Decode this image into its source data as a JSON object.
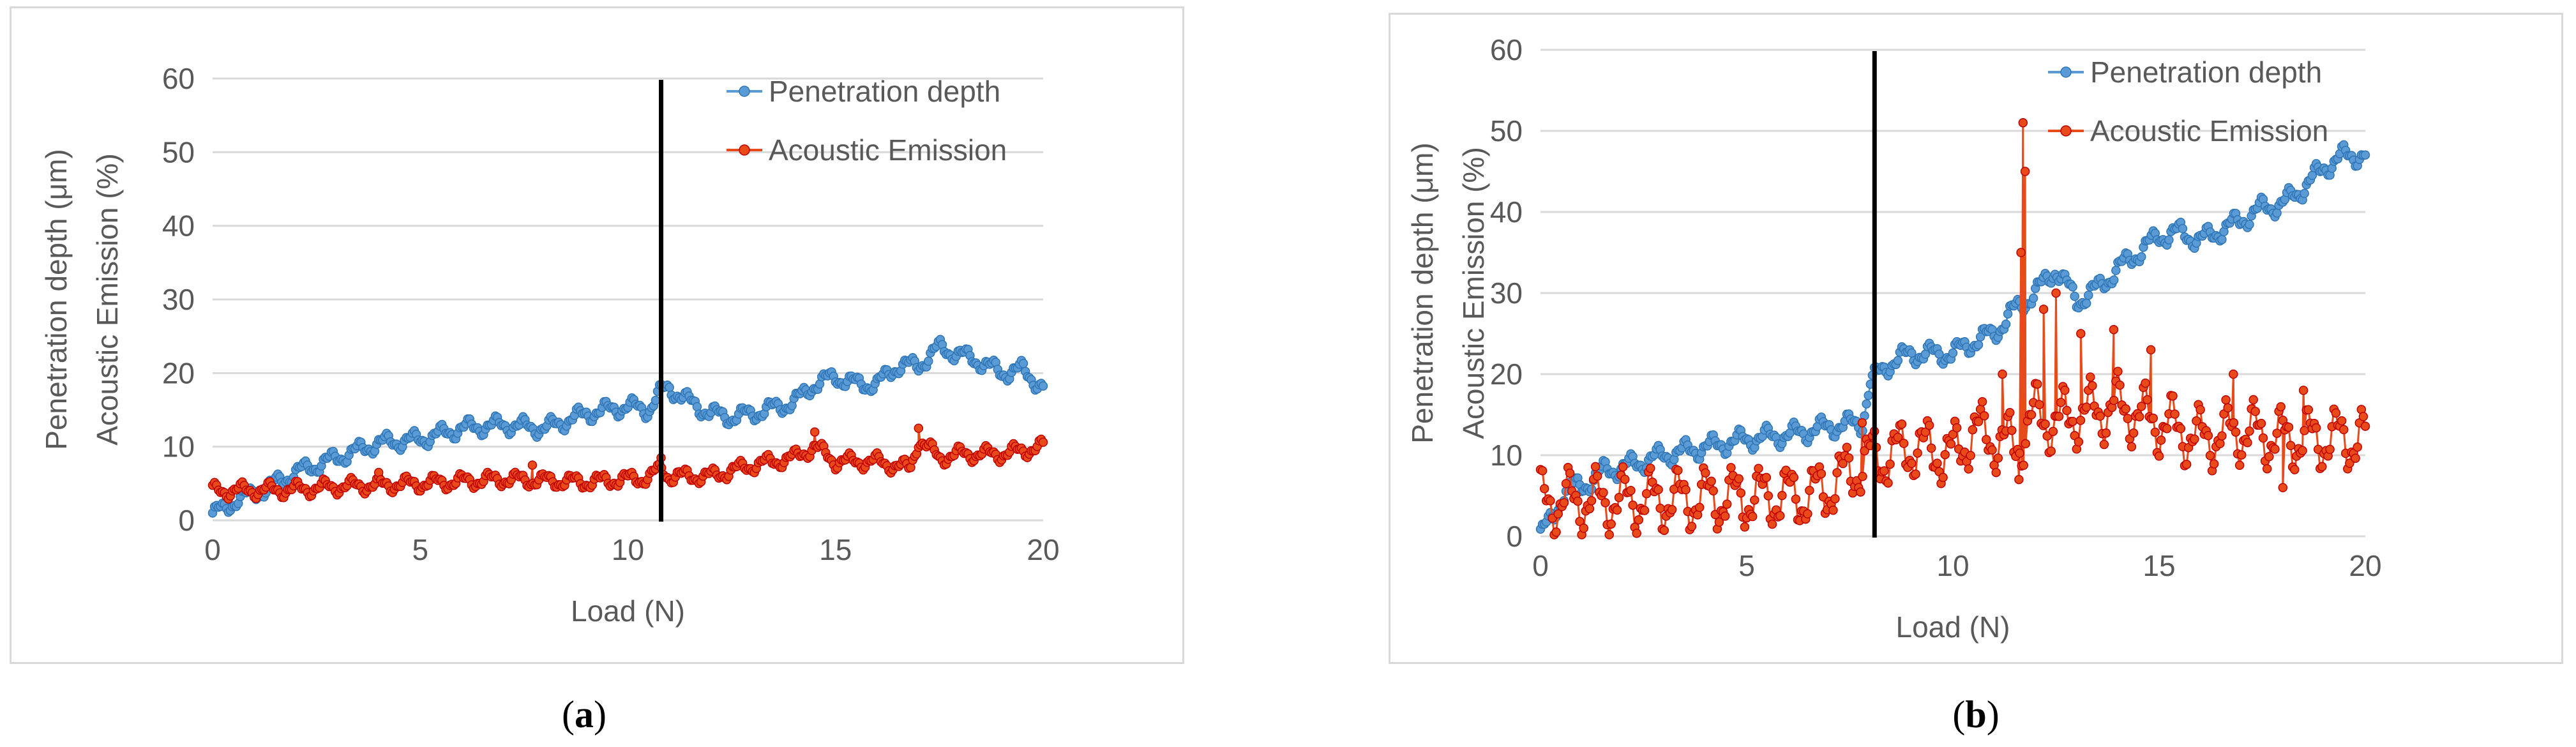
{
  "chart_data": [
    {
      "id": "a",
      "type": "scatter",
      "caption": {
        "open": "(",
        "letter": "a",
        "close": ")"
      },
      "xlabel": "Load (N)",
      "ylabel_lines": [
        "Penetration depth (μm)",
        "Acoustic Emission (%)"
      ],
      "xlim": [
        0,
        20
      ],
      "ylim": [
        0,
        60
      ],
      "xticks": [
        0,
        5,
        10,
        15,
        20
      ],
      "yticks": [
        0,
        10,
        20,
        30,
        40,
        50,
        60
      ],
      "grid": "horizontal",
      "legend_position": "top-right",
      "vertical_marker_x": 10.8,
      "series": [
        {
          "name": "Penetration depth",
          "color": "#5b9bd5",
          "edge": "#2e75b6",
          "keypoints": [
            [
              0,
              1
            ],
            [
              0.3,
              1.5
            ],
            [
              0.6,
              3
            ],
            [
              1,
              3.5
            ],
            [
              1.5,
              5
            ],
            [
              2,
              6.5
            ],
            [
              3,
              8.5
            ],
            [
              3.5,
              9.5
            ],
            [
              4,
              10.5
            ],
            [
              5,
              11
            ],
            [
              6,
              12.5
            ],
            [
              7,
              13
            ],
            [
              8,
              12.5
            ],
            [
              9,
              14.5
            ],
            [
              10,
              15.5
            ],
            [
              10.5,
              15
            ],
            [
              10.8,
              17.5
            ],
            [
              11,
              18
            ],
            [
              11.5,
              16
            ],
            [
              12,
              14.5
            ],
            [
              12.5,
              14
            ],
            [
              13,
              14.5
            ],
            [
              14,
              16
            ],
            [
              14.5,
              18.5
            ],
            [
              15,
              19.5
            ],
            [
              15.5,
              18.5
            ],
            [
              16,
              18.5
            ],
            [
              16.5,
              21
            ],
            [
              17,
              21
            ],
            [
              17.5,
              23.5
            ],
            [
              18,
              22.5
            ],
            [
              18.5,
              21.5
            ],
            [
              19,
              20
            ],
            [
              19.5,
              20.5
            ],
            [
              20,
              18
            ]
          ],
          "wobble": 0.9
        },
        {
          "name": "Acoustic Emission",
          "color": "#e84a1a",
          "edge": "#c00000",
          "keypoints": [
            [
              0,
              4
            ],
            [
              2,
              4.2
            ],
            [
              3,
              4.6
            ],
            [
              5,
              5
            ],
            [
              7,
              5.6
            ],
            [
              9,
              5.2
            ],
            [
              10.5,
              5.8
            ],
            [
              10.8,
              7
            ],
            [
              11,
              6
            ],
            [
              12,
              6
            ],
            [
              13,
              7.5
            ],
            [
              14,
              8.5
            ],
            [
              14.5,
              10
            ],
            [
              15,
              8
            ],
            [
              16,
              8
            ],
            [
              16.8,
              7
            ],
            [
              17,
              11
            ],
            [
              17.5,
              8.5
            ],
            [
              18,
              9
            ],
            [
              19,
              9
            ],
            [
              19.5,
              9.5
            ],
            [
              20,
              10
            ]
          ],
          "wobble": 0.8,
          "spikes": [
            [
              14.5,
              12
            ],
            [
              17,
              12.5
            ],
            [
              10.8,
              8.5
            ],
            [
              4,
              6.5
            ],
            [
              7.7,
              7.5
            ]
          ]
        }
      ]
    },
    {
      "id": "b",
      "type": "scatter",
      "caption": {
        "open": "(",
        "letter": "b",
        "close": ")"
      },
      "xlabel": "Load (N)",
      "ylabel_lines": [
        "Penetration depth (μm)",
        "Acoustic Emission (%)"
      ],
      "xlim": [
        0,
        20
      ],
      "ylim": [
        0,
        60
      ],
      "xticks": [
        0,
        5,
        10,
        15,
        20
      ],
      "yticks": [
        0,
        10,
        20,
        30,
        40,
        50,
        60
      ],
      "grid": "horizontal",
      "legend_position": "top-right",
      "vertical_marker_x": 8.1,
      "series": [
        {
          "name": "Penetration depth",
          "color": "#5b9bd5",
          "edge": "#2e75b6",
          "keypoints": [
            [
              0,
              0.5
            ],
            [
              0.3,
              2
            ],
            [
              0.6,
              6
            ],
            [
              1,
              6
            ],
            [
              1.5,
              8
            ],
            [
              2,
              8.5
            ],
            [
              3,
              10
            ],
            [
              4,
              11
            ],
            [
              5,
              12
            ],
            [
              6,
              12.5
            ],
            [
              7,
              13.5
            ],
            [
              7.8,
              14
            ],
            [
              8,
              19
            ],
            [
              8.2,
              20
            ],
            [
              8.5,
              21.5
            ],
            [
              9,
              22.5
            ],
            [
              10,
              22.5
            ],
            [
              10.5,
              24
            ],
            [
              11,
              25
            ],
            [
              11.5,
              28
            ],
            [
              12,
              30
            ],
            [
              12.5,
              33
            ],
            [
              13,
              29
            ],
            [
              13.5,
              30.5
            ],
            [
              14,
              33
            ],
            [
              14.5,
              35
            ],
            [
              15,
              37
            ],
            [
              15.5,
              37.5
            ],
            [
              16,
              36.5
            ],
            [
              17,
              39
            ],
            [
              17.5,
              40.5
            ],
            [
              18,
              41
            ],
            [
              18.5,
              43
            ],
            [
              19,
              45.5
            ],
            [
              19.5,
              47
            ],
            [
              20,
              47
            ]
          ],
          "wobble": 1.0
        },
        {
          "name": "Acoustic Emission",
          "color": "#e84a1a",
          "edge": "#c00000",
          "keypoints": [
            [
              0,
              4.2
            ],
            [
              2,
              4.4
            ],
            [
              3,
              4.5
            ],
            [
              5,
              4.8
            ],
            [
              6.5,
              5
            ],
            [
              7,
              6
            ],
            [
              7.5,
              8
            ],
            [
              8,
              9.5
            ],
            [
              8.5,
              10
            ],
            [
              9,
              11
            ],
            [
              10,
              10
            ],
            [
              10.5,
              13
            ],
            [
              11,
              12
            ],
            [
              11.5,
              11
            ],
            [
              12,
              15
            ],
            [
              12.5,
              14
            ],
            [
              13,
              15
            ],
            [
              14,
              16
            ],
            [
              15,
              14
            ],
            [
              16,
              12
            ],
            [
              17,
              13
            ],
            [
              18,
              12
            ],
            [
              19,
              12
            ],
            [
              20,
              12
            ]
          ],
          "wobble": 3.0,
          "spikes": [
            [
              11.7,
              51
            ],
            [
              11.75,
              45
            ],
            [
              11.65,
              35
            ],
            [
              11.2,
              20
            ],
            [
              12.5,
              30
            ],
            [
              12.2,
              28
            ],
            [
              13.1,
              25
            ],
            [
              13.9,
              25.5
            ],
            [
              14.8,
              23
            ],
            [
              16.8,
              20
            ],
            [
              18.5,
              18
            ],
            [
              7.8,
              14
            ],
            [
              11.6,
              7
            ],
            [
              18,
              6
            ]
          ]
        }
      ]
    }
  ]
}
